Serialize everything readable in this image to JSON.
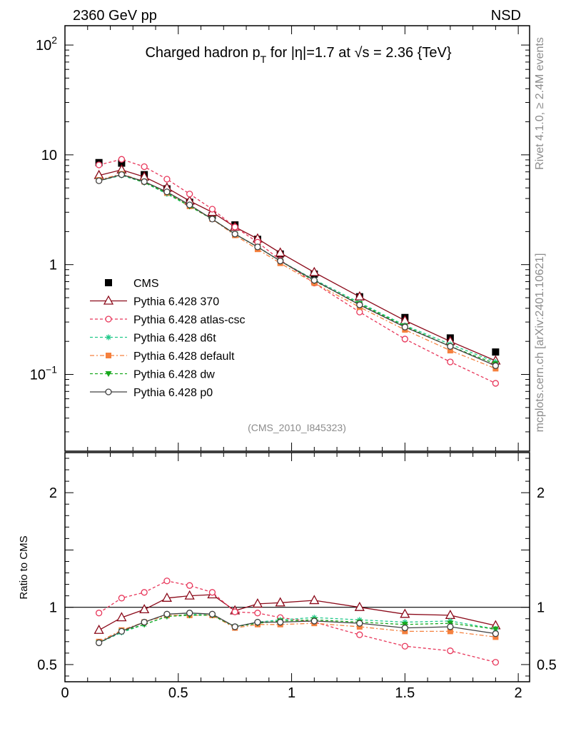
{
  "header": {
    "left": "2360 GeV pp",
    "right": "NSD",
    "title": "Charged hadron p_T for |η|=1.7 at √s = 2.36 {TeV}"
  },
  "side_notes": {
    "rivet": "Rivet 4.1.0, ≥ 2.4M events",
    "mcplots": "mcplots.cern.ch [arXiv:2401.10621]"
  },
  "analysis_id": "(CMS_2010_I845323)",
  "colors": {
    "cms": "#000000",
    "p370": "#8b0a1a",
    "atlas": "#e8365a",
    "d6t": "#21c98a",
    "default": "#f5803d",
    "dw": "#17a81c",
    "p0": "#404040"
  },
  "chart_data": [
    {
      "type": "line",
      "name": "main",
      "title": "Charged hadron p_T for |η|=1.7 at √s = 2.36 {TeV}",
      "yscale": "log",
      "xlim": [
        0,
        2.05
      ],
      "ylim": [
        0.02,
        150
      ],
      "y_ticks": [
        {
          "v": 100,
          "label": "10",
          "sup": "2"
        },
        {
          "v": 10,
          "label": "10",
          "sup": ""
        },
        {
          "v": 1,
          "label": "1",
          "sup": ""
        },
        {
          "v": 0.1,
          "label": "10",
          "sup": "−1"
        }
      ],
      "legend_position": "bottom-left",
      "x": [
        0.15,
        0.25,
        0.35,
        0.45,
        0.55,
        0.65,
        0.75,
        0.85,
        0.95,
        1.1,
        1.3,
        1.5,
        1.7,
        1.9
      ],
      "series": [
        {
          "name": "CMS",
          "key": "cms",
          "marker": "square",
          "line": "none",
          "values": [
            8.5,
            8.4,
            6.6,
            4.9,
            3.7,
            2.8,
            2.3,
            1.7,
            1.25,
            0.82,
            0.51,
            0.33,
            0.215,
            0.16
          ]
        },
        {
          "name": "Pythia 6.428 370",
          "key": "p370",
          "marker": "triangle-open",
          "line": "solid",
          "values": [
            6.5,
            7.3,
            6.3,
            5.0,
            3.8,
            3.0,
            2.2,
            1.72,
            1.28,
            0.85,
            0.51,
            0.31,
            0.2,
            0.133
          ]
        },
        {
          "name": "Pythia 6.428 atlas-csc",
          "key": "atlas",
          "marker": "circle-open",
          "line": "dashed",
          "values": [
            8.1,
            9.1,
            7.8,
            6.0,
            4.4,
            3.2,
            2.2,
            1.6,
            1.1,
            0.68,
            0.37,
            0.21,
            0.13,
            0.083
          ]
        },
        {
          "name": "Pythia 6.428 d6t",
          "key": "d6t",
          "marker": "asterisk",
          "line": "dashed",
          "values": [
            5.8,
            6.5,
            5.6,
            4.4,
            3.4,
            2.6,
            1.9,
            1.45,
            1.08,
            0.73,
            0.45,
            0.28,
            0.188,
            0.13
          ]
        },
        {
          "name": "Pythia 6.428 default",
          "key": "default",
          "marker": "square-small",
          "line": "dashdot",
          "values": [
            5.9,
            6.7,
            5.7,
            4.5,
            3.4,
            2.6,
            1.85,
            1.38,
            1.03,
            0.68,
            0.41,
            0.255,
            0.165,
            0.113
          ]
        },
        {
          "name": "Pythia 6.428 dw",
          "key": "dw",
          "marker": "triangle-down",
          "line": "dashed",
          "values": [
            5.8,
            6.6,
            5.6,
            4.5,
            3.4,
            2.6,
            1.9,
            1.45,
            1.08,
            0.71,
            0.44,
            0.275,
            0.18,
            0.125
          ]
        },
        {
          "name": "Pythia 6.428 p0",
          "key": "p0",
          "marker": "circle-open",
          "line": "solid",
          "values": [
            5.8,
            6.6,
            5.7,
            4.6,
            3.5,
            2.6,
            1.9,
            1.45,
            1.08,
            0.72,
            0.43,
            0.27,
            0.18,
            0.12
          ]
        }
      ]
    },
    {
      "type": "line",
      "name": "ratio",
      "ylabel": "Ratio to CMS",
      "xlim": [
        0,
        2.05
      ],
      "ylim": [
        0.35,
        2.35
      ],
      "y_ticks": [
        {
          "v": 2,
          "label": "2"
        },
        {
          "v": 1,
          "label": "1"
        },
        {
          "v": 0.5,
          "label": "0.5"
        }
      ],
      "x_ticks": [
        {
          "v": 0,
          "label": "0"
        },
        {
          "v": 0.5,
          "label": "0.5"
        },
        {
          "v": 1,
          "label": "1"
        },
        {
          "v": 1.5,
          "label": "1.5"
        },
        {
          "v": 2,
          "label": "2"
        }
      ],
      "reference_line": 1,
      "x": [
        0.15,
        0.25,
        0.35,
        0.45,
        0.55,
        0.65,
        0.75,
        0.85,
        0.95,
        1.1,
        1.3,
        1.5,
        1.7,
        1.9
      ],
      "series": [
        {
          "name": "Pythia 6.428 370",
          "key": "p370",
          "marker": "triangle-open",
          "line": "solid",
          "values": [
            0.8,
            0.91,
            0.98,
            1.08,
            1.1,
            1.11,
            0.97,
            1.03,
            1.04,
            1.06,
            1.0,
            0.94,
            0.93,
            0.84
          ]
        },
        {
          "name": "Pythia 6.428 atlas-csc",
          "key": "atlas",
          "marker": "circle-open",
          "line": "dashed",
          "values": [
            0.95,
            1.08,
            1.13,
            1.23,
            1.19,
            1.13,
            0.96,
            0.95,
            0.91,
            0.87,
            0.76,
            0.66,
            0.62,
            0.52
          ]
        },
        {
          "name": "Pythia 6.428 d6t",
          "key": "d6t",
          "marker": "asterisk",
          "line": "dashed",
          "values": [
            0.69,
            0.78,
            0.85,
            0.92,
            0.94,
            0.93,
            0.83,
            0.87,
            0.89,
            0.91,
            0.89,
            0.87,
            0.88,
            0.81
          ]
        },
        {
          "name": "Pythia 6.428 default",
          "key": "default",
          "marker": "square-small",
          "line": "dashdot",
          "values": [
            0.7,
            0.8,
            0.87,
            0.93,
            0.93,
            0.93,
            0.82,
            0.85,
            0.85,
            0.86,
            0.83,
            0.79,
            0.79,
            0.74
          ]
        },
        {
          "name": "Pythia 6.428 dw",
          "key": "dw",
          "marker": "triangle-down",
          "line": "dashed",
          "values": [
            0.69,
            0.79,
            0.85,
            0.92,
            0.93,
            0.93,
            0.83,
            0.86,
            0.88,
            0.89,
            0.87,
            0.85,
            0.86,
            0.81
          ]
        },
        {
          "name": "Pythia 6.428 p0",
          "key": "p0",
          "marker": "circle-open",
          "line": "solid",
          "values": [
            0.69,
            0.79,
            0.87,
            0.94,
            0.95,
            0.94,
            0.83,
            0.87,
            0.87,
            0.88,
            0.86,
            0.82,
            0.83,
            0.77
          ]
        }
      ]
    }
  ]
}
